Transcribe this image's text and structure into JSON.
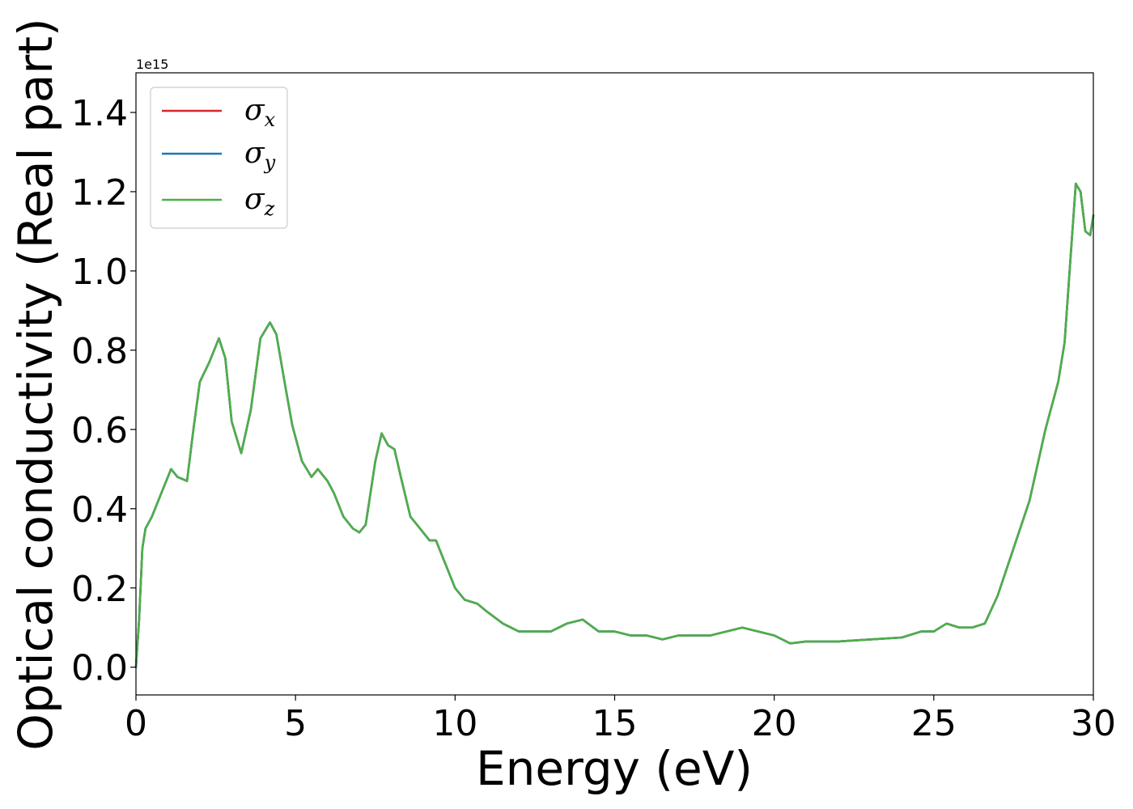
{
  "chart_data": {
    "type": "line",
    "xlabel": "Energy (eV)",
    "ylabel": "Optical conductivity (Real part)",
    "y_offset_label": "1e15",
    "xlim": [
      0,
      30
    ],
    "ylim": [
      -0.07,
      1.5
    ],
    "x_ticks": [
      0,
      5,
      10,
      15,
      20,
      25,
      30
    ],
    "x_tick_labels": [
      "0",
      "5",
      "10",
      "15",
      "20",
      "25",
      "30"
    ],
    "y_ticks": [
      0.0,
      0.2,
      0.4,
      0.6,
      0.8,
      1.0,
      1.2,
      1.4
    ],
    "y_tick_labels": [
      "0.0",
      "0.2",
      "0.4",
      "0.6",
      "0.8",
      "1.0",
      "1.2",
      "1.4"
    ],
    "grid": false,
    "legend_position": "top-left",
    "series": [
      {
        "name": "σ_x",
        "symbol": "σ",
        "subscript": "x",
        "color": "#d62728",
        "x": [
          0,
          0.1,
          0.2,
          0.3,
          0.5,
          0.8,
          1.1,
          1.3,
          1.6,
          1.8,
          2.0,
          2.3,
          2.6,
          2.8,
          3.0,
          3.3,
          3.6,
          3.9,
          4.2,
          4.4,
          4.7,
          4.9,
          5.2,
          5.5,
          5.7,
          6.0,
          6.2,
          6.5,
          6.8,
          7.0,
          7.2,
          7.5,
          7.7,
          7.9,
          8.1,
          8.3,
          8.6,
          8.9,
          9.2,
          9.4,
          9.7,
          10.0,
          10.3,
          10.7,
          11.0,
          11.5,
          12.0,
          12.5,
          13.0,
          13.5,
          14.0,
          14.5,
          15.0,
          15.5,
          16.0,
          16.5,
          17.0,
          17.5,
          18.0,
          18.5,
          19.0,
          19.5,
          20.0,
          20.5,
          21.0,
          22.0,
          23.0,
          24.0,
          24.6,
          25.0,
          25.4,
          25.8,
          26.2,
          26.6,
          27.0,
          27.5,
          28.0,
          28.5,
          28.9,
          29.1,
          29.3,
          29.45,
          29.6,
          29.75,
          29.9,
          30.0
        ],
        "y": [
          0.0,
          0.12,
          0.3,
          0.35,
          0.38,
          0.44,
          0.5,
          0.48,
          0.47,
          0.6,
          0.72,
          0.77,
          0.83,
          0.78,
          0.62,
          0.54,
          0.65,
          0.83,
          0.87,
          0.84,
          0.7,
          0.61,
          0.52,
          0.48,
          0.5,
          0.47,
          0.44,
          0.38,
          0.35,
          0.34,
          0.36,
          0.52,
          0.59,
          0.56,
          0.55,
          0.48,
          0.38,
          0.35,
          0.32,
          0.32,
          0.26,
          0.2,
          0.17,
          0.16,
          0.14,
          0.11,
          0.09,
          0.09,
          0.09,
          0.11,
          0.12,
          0.09,
          0.09,
          0.08,
          0.08,
          0.07,
          0.08,
          0.08,
          0.08,
          0.09,
          0.1,
          0.09,
          0.08,
          0.06,
          0.065,
          0.065,
          0.07,
          0.075,
          0.09,
          0.09,
          0.11,
          0.1,
          0.1,
          0.11,
          0.18,
          0.3,
          0.42,
          0.6,
          0.72,
          0.82,
          1.05,
          1.22,
          1.2,
          1.1,
          1.09,
          1.14
        ]
      },
      {
        "name": "σ_y",
        "symbol": "σ",
        "subscript": "y",
        "color": "#1f77b4",
        "x": [
          0,
          0.1,
          0.2,
          0.3,
          0.5,
          0.8,
          1.1,
          1.3,
          1.6,
          1.8,
          2.0,
          2.3,
          2.6,
          2.8,
          3.0,
          3.3,
          3.6,
          3.9,
          4.2,
          4.4,
          4.7,
          4.9,
          5.2,
          5.5,
          5.7,
          6.0,
          6.2,
          6.5,
          6.8,
          7.0,
          7.2,
          7.5,
          7.7,
          7.9,
          8.1,
          8.3,
          8.6,
          8.9,
          9.2,
          9.4,
          9.7,
          10.0,
          10.3,
          10.7,
          11.0,
          11.5,
          12.0,
          12.5,
          13.0,
          13.5,
          14.0,
          14.5,
          15.0,
          15.5,
          16.0,
          16.5,
          17.0,
          17.5,
          18.0,
          18.5,
          19.0,
          19.5,
          20.0,
          20.5,
          21.0,
          22.0,
          23.0,
          24.0,
          24.6,
          25.0,
          25.4,
          25.8,
          26.2,
          26.6,
          27.0,
          27.5,
          28.0,
          28.5,
          28.9,
          29.1,
          29.3,
          29.45,
          29.6,
          29.75,
          29.9,
          30.0
        ],
        "y": [
          0.0,
          0.12,
          0.3,
          0.35,
          0.38,
          0.44,
          0.5,
          0.48,
          0.47,
          0.6,
          0.72,
          0.77,
          0.83,
          0.78,
          0.62,
          0.54,
          0.65,
          0.83,
          0.87,
          0.84,
          0.7,
          0.61,
          0.52,
          0.48,
          0.5,
          0.47,
          0.44,
          0.38,
          0.35,
          0.34,
          0.36,
          0.52,
          0.59,
          0.56,
          0.55,
          0.48,
          0.38,
          0.35,
          0.32,
          0.32,
          0.26,
          0.2,
          0.17,
          0.16,
          0.14,
          0.11,
          0.09,
          0.09,
          0.09,
          0.11,
          0.12,
          0.09,
          0.09,
          0.08,
          0.08,
          0.07,
          0.08,
          0.08,
          0.08,
          0.09,
          0.1,
          0.09,
          0.08,
          0.06,
          0.065,
          0.065,
          0.07,
          0.075,
          0.09,
          0.09,
          0.11,
          0.1,
          0.1,
          0.11,
          0.18,
          0.3,
          0.42,
          0.6,
          0.72,
          0.82,
          1.05,
          1.22,
          1.2,
          1.1,
          1.09,
          1.14
        ]
      },
      {
        "name": "σ_z",
        "symbol": "σ",
        "subscript": "z",
        "color": "#4daf4a",
        "x": [
          0,
          0.1,
          0.2,
          0.3,
          0.5,
          0.8,
          1.1,
          1.3,
          1.6,
          1.8,
          2.0,
          2.3,
          2.6,
          2.8,
          3.0,
          3.3,
          3.6,
          3.9,
          4.2,
          4.4,
          4.7,
          4.9,
          5.2,
          5.5,
          5.7,
          6.0,
          6.2,
          6.5,
          6.8,
          7.0,
          7.2,
          7.5,
          7.7,
          7.9,
          8.1,
          8.3,
          8.6,
          8.9,
          9.2,
          9.4,
          9.7,
          10.0,
          10.3,
          10.7,
          11.0,
          11.5,
          12.0,
          12.5,
          13.0,
          13.5,
          14.0,
          14.5,
          15.0,
          15.5,
          16.0,
          16.5,
          17.0,
          17.5,
          18.0,
          18.5,
          19.0,
          19.5,
          20.0,
          20.5,
          21.0,
          22.0,
          23.0,
          24.0,
          24.6,
          25.0,
          25.4,
          25.8,
          26.2,
          26.6,
          27.0,
          27.5,
          28.0,
          28.5,
          28.9,
          29.1,
          29.3,
          29.45,
          29.6,
          29.75,
          29.9,
          30.0
        ],
        "y": [
          0.0,
          0.12,
          0.3,
          0.35,
          0.38,
          0.44,
          0.5,
          0.48,
          0.47,
          0.6,
          0.72,
          0.77,
          0.83,
          0.78,
          0.62,
          0.54,
          0.65,
          0.83,
          0.87,
          0.84,
          0.7,
          0.61,
          0.52,
          0.48,
          0.5,
          0.47,
          0.44,
          0.38,
          0.35,
          0.34,
          0.36,
          0.52,
          0.59,
          0.56,
          0.55,
          0.48,
          0.38,
          0.35,
          0.32,
          0.32,
          0.26,
          0.2,
          0.17,
          0.16,
          0.14,
          0.11,
          0.09,
          0.09,
          0.09,
          0.11,
          0.12,
          0.09,
          0.09,
          0.08,
          0.08,
          0.07,
          0.08,
          0.08,
          0.08,
          0.09,
          0.1,
          0.09,
          0.08,
          0.06,
          0.065,
          0.065,
          0.07,
          0.075,
          0.09,
          0.09,
          0.11,
          0.1,
          0.1,
          0.11,
          0.18,
          0.3,
          0.42,
          0.6,
          0.72,
          0.82,
          1.05,
          1.22,
          1.2,
          1.1,
          1.09,
          1.14
        ]
      }
    ]
  }
}
